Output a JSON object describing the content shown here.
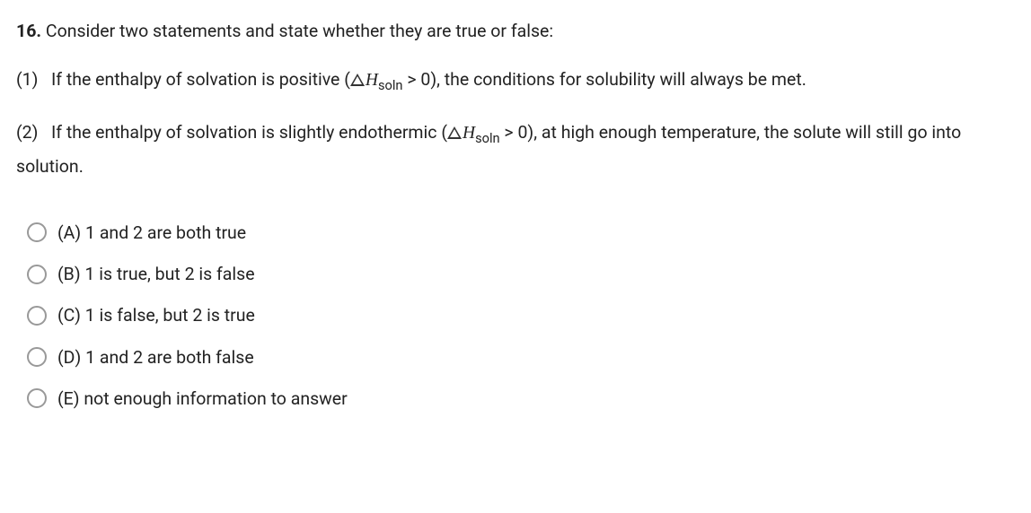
{
  "question": {
    "number": "16.",
    "prompt": "Consider two statements and state whether they are true or false:"
  },
  "statements": [
    {
      "label": "(1)",
      "before": "If the enthalpy of solvation is positive (",
      "delta_sub": "soln",
      "after": " > 0), the conditions for solubility will always be met."
    },
    {
      "label": "(2)",
      "before": "If the enthalpy of solvation is slightly endothermic (",
      "delta_sub": "soln",
      "after": " > 0), at high enough temperature, the solute will still go into solution."
    }
  ],
  "options": [
    {
      "label": "(A)",
      "text": "1 and 2 are both true"
    },
    {
      "label": "(B)",
      "text": "1 is true, but 2 is false"
    },
    {
      "label": "(C)",
      "text": "1 is false, but 2 is true"
    },
    {
      "label": "(D)",
      "text": "1 and 2 are both false"
    },
    {
      "label": "(E)",
      "text": " not enough information to answer"
    }
  ],
  "colors": {
    "text": "#222222",
    "background": "#ffffff",
    "radio_border": "#999999"
  }
}
